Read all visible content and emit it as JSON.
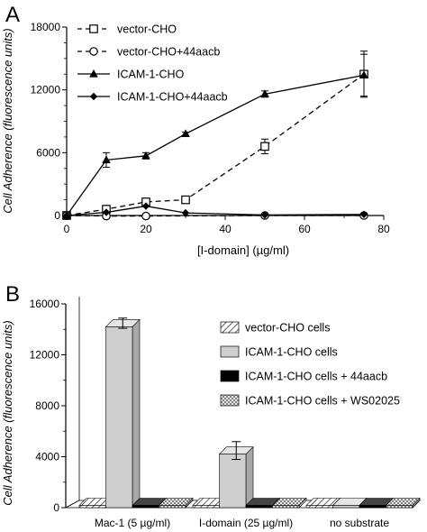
{
  "chart_data": [
    {
      "panel_label": "A",
      "type": "line",
      "xlabel": "[I-domain] (µg/ml)",
      "ylabel": "Cell Adherence (fluorescence units)",
      "xlim": [
        0,
        80
      ],
      "ylim": [
        0,
        18000
      ],
      "xticks": [
        0,
        20,
        40,
        60,
        80
      ],
      "yticks": [
        0,
        6000,
        12000,
        18000
      ],
      "xtick_labels": [
        "0",
        "20",
        "40",
        "60",
        "80"
      ],
      "ytick_labels": [
        "0",
        "6000",
        "12000",
        "18000"
      ],
      "grid": false,
      "legend_position": "top-left",
      "series": [
        {
          "name": "vector-CHO",
          "marker": "open-square",
          "line": "dashed",
          "x": [
            0,
            10,
            20,
            30,
            50,
            75
          ],
          "y": [
            0,
            600,
            1300,
            1500,
            6600,
            13500
          ],
          "err": [
            0,
            150,
            200,
            150,
            700,
            2200
          ]
        },
        {
          "name": "vector-CHO+44aacb",
          "marker": "open-circle",
          "line": "dashed",
          "x": [
            0,
            10,
            20,
            50,
            75
          ],
          "y": [
            0,
            -50,
            -50,
            0,
            0
          ],
          "err": [
            0,
            0,
            0,
            0,
            0
          ]
        },
        {
          "name": "ICAM-1-CHO",
          "marker": "filled-triangle",
          "line": "solid",
          "x": [
            0,
            10,
            20,
            30,
            50,
            75
          ],
          "y": [
            0,
            5300,
            5700,
            7800,
            11600,
            13400
          ],
          "err": [
            0,
            700,
            300,
            150,
            300,
            2000
          ]
        },
        {
          "name": "ICAM-1-CHO+44aacb",
          "marker": "filled-diamond",
          "line": "solid",
          "x": [
            0,
            10,
            20,
            30,
            50,
            75
          ],
          "y": [
            0,
            300,
            900,
            250,
            50,
            100
          ],
          "err": [
            0,
            0,
            0,
            0,
            0,
            0
          ]
        }
      ]
    },
    {
      "panel_label": "B",
      "type": "bar",
      "ylabel": "Cell Adherence (fluorescence units)",
      "ylim": [
        0,
        16000
      ],
      "yticks": [
        0,
        4000,
        8000,
        12000,
        16000
      ],
      "ytick_labels": [
        "0",
        "4000",
        "8000",
        "12000",
        "16000"
      ],
      "categories": [
        "Mac-1 (5 µg/ml)",
        "I-domain (25 µg/ml)",
        "no substrate"
      ],
      "grid": false,
      "legend_position": "top-right",
      "series": [
        {
          "name": "vector-CHO cells",
          "fill": "diagonal-hatch",
          "values": [
            0,
            0,
            0
          ],
          "err": [
            0,
            0,
            0
          ]
        },
        {
          "name": "ICAM-1-CHO cells",
          "fill": "light-gray",
          "values": [
            14200,
            4200,
            0
          ],
          "err": [
            400,
            700,
            0
          ]
        },
        {
          "name": "ICAM-1-CHO cells + 44aacb",
          "fill": "black",
          "values": [
            0,
            0,
            0
          ],
          "err": [
            0,
            0,
            0
          ]
        },
        {
          "name": "ICAM-1-CHO cells + WS02025",
          "fill": "crosshatch",
          "values": [
            0,
            0,
            0
          ],
          "err": [
            0,
            0,
            0
          ]
        }
      ]
    }
  ]
}
